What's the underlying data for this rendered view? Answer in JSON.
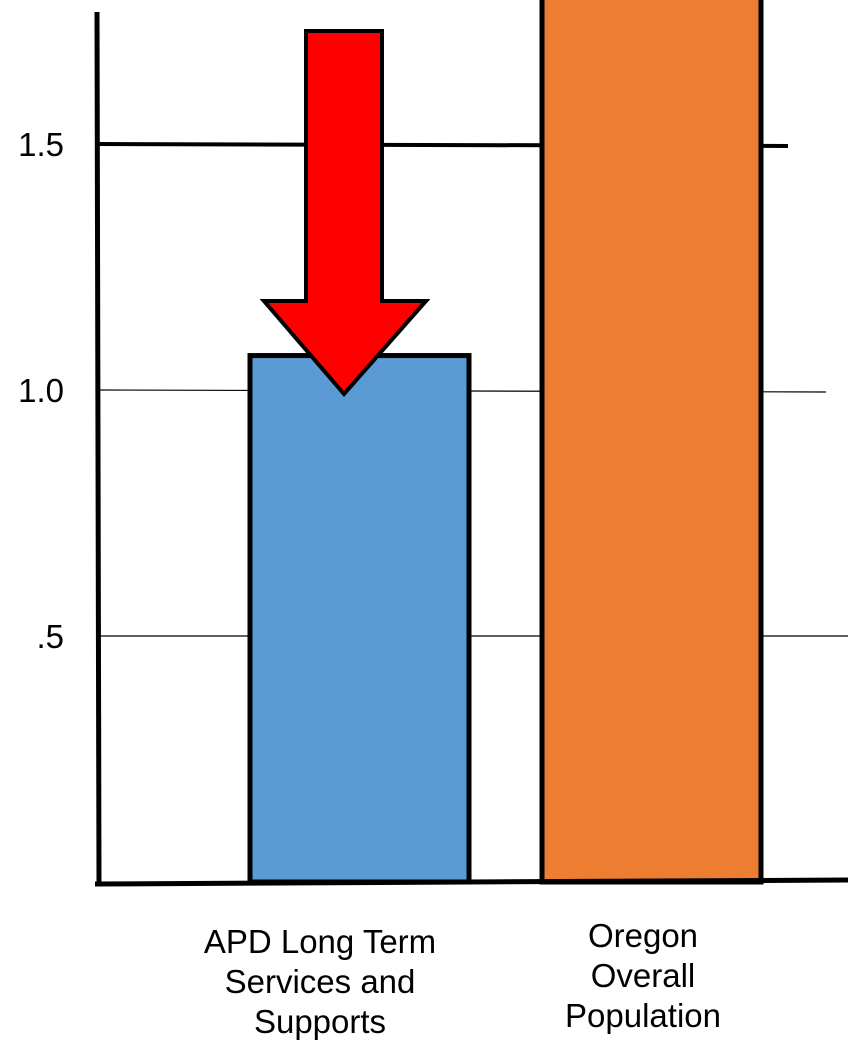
{
  "chart_data": {
    "type": "bar",
    "title": "",
    "xlabel": "",
    "ylabel": "",
    "categories": [
      "APD Long Term Services and Supports",
      "Oregon Overall Population"
    ],
    "category_lines": [
      [
        "APD Long Term",
        "Services and",
        "Supports"
      ],
      [
        "Oregon",
        "Overall",
        "Population"
      ]
    ],
    "values": [
      1.07,
      1.8
    ],
    "colors": [
      "#5B9BD5",
      "#ED7D31"
    ],
    "ylim": [
      0,
      1.8
    ],
    "yticks": [
      {
        "value": 0.5,
        "label": ".5"
      },
      {
        "value": 1.0,
        "label": "1.0"
      },
      {
        "value": 1.5,
        "label": "1.5"
      }
    ],
    "grid": true,
    "legend": "none",
    "annotation": {
      "shape": "down-arrow-icon",
      "color": "#FF0000",
      "points_to": "APD Long Term Services and Supports"
    }
  }
}
